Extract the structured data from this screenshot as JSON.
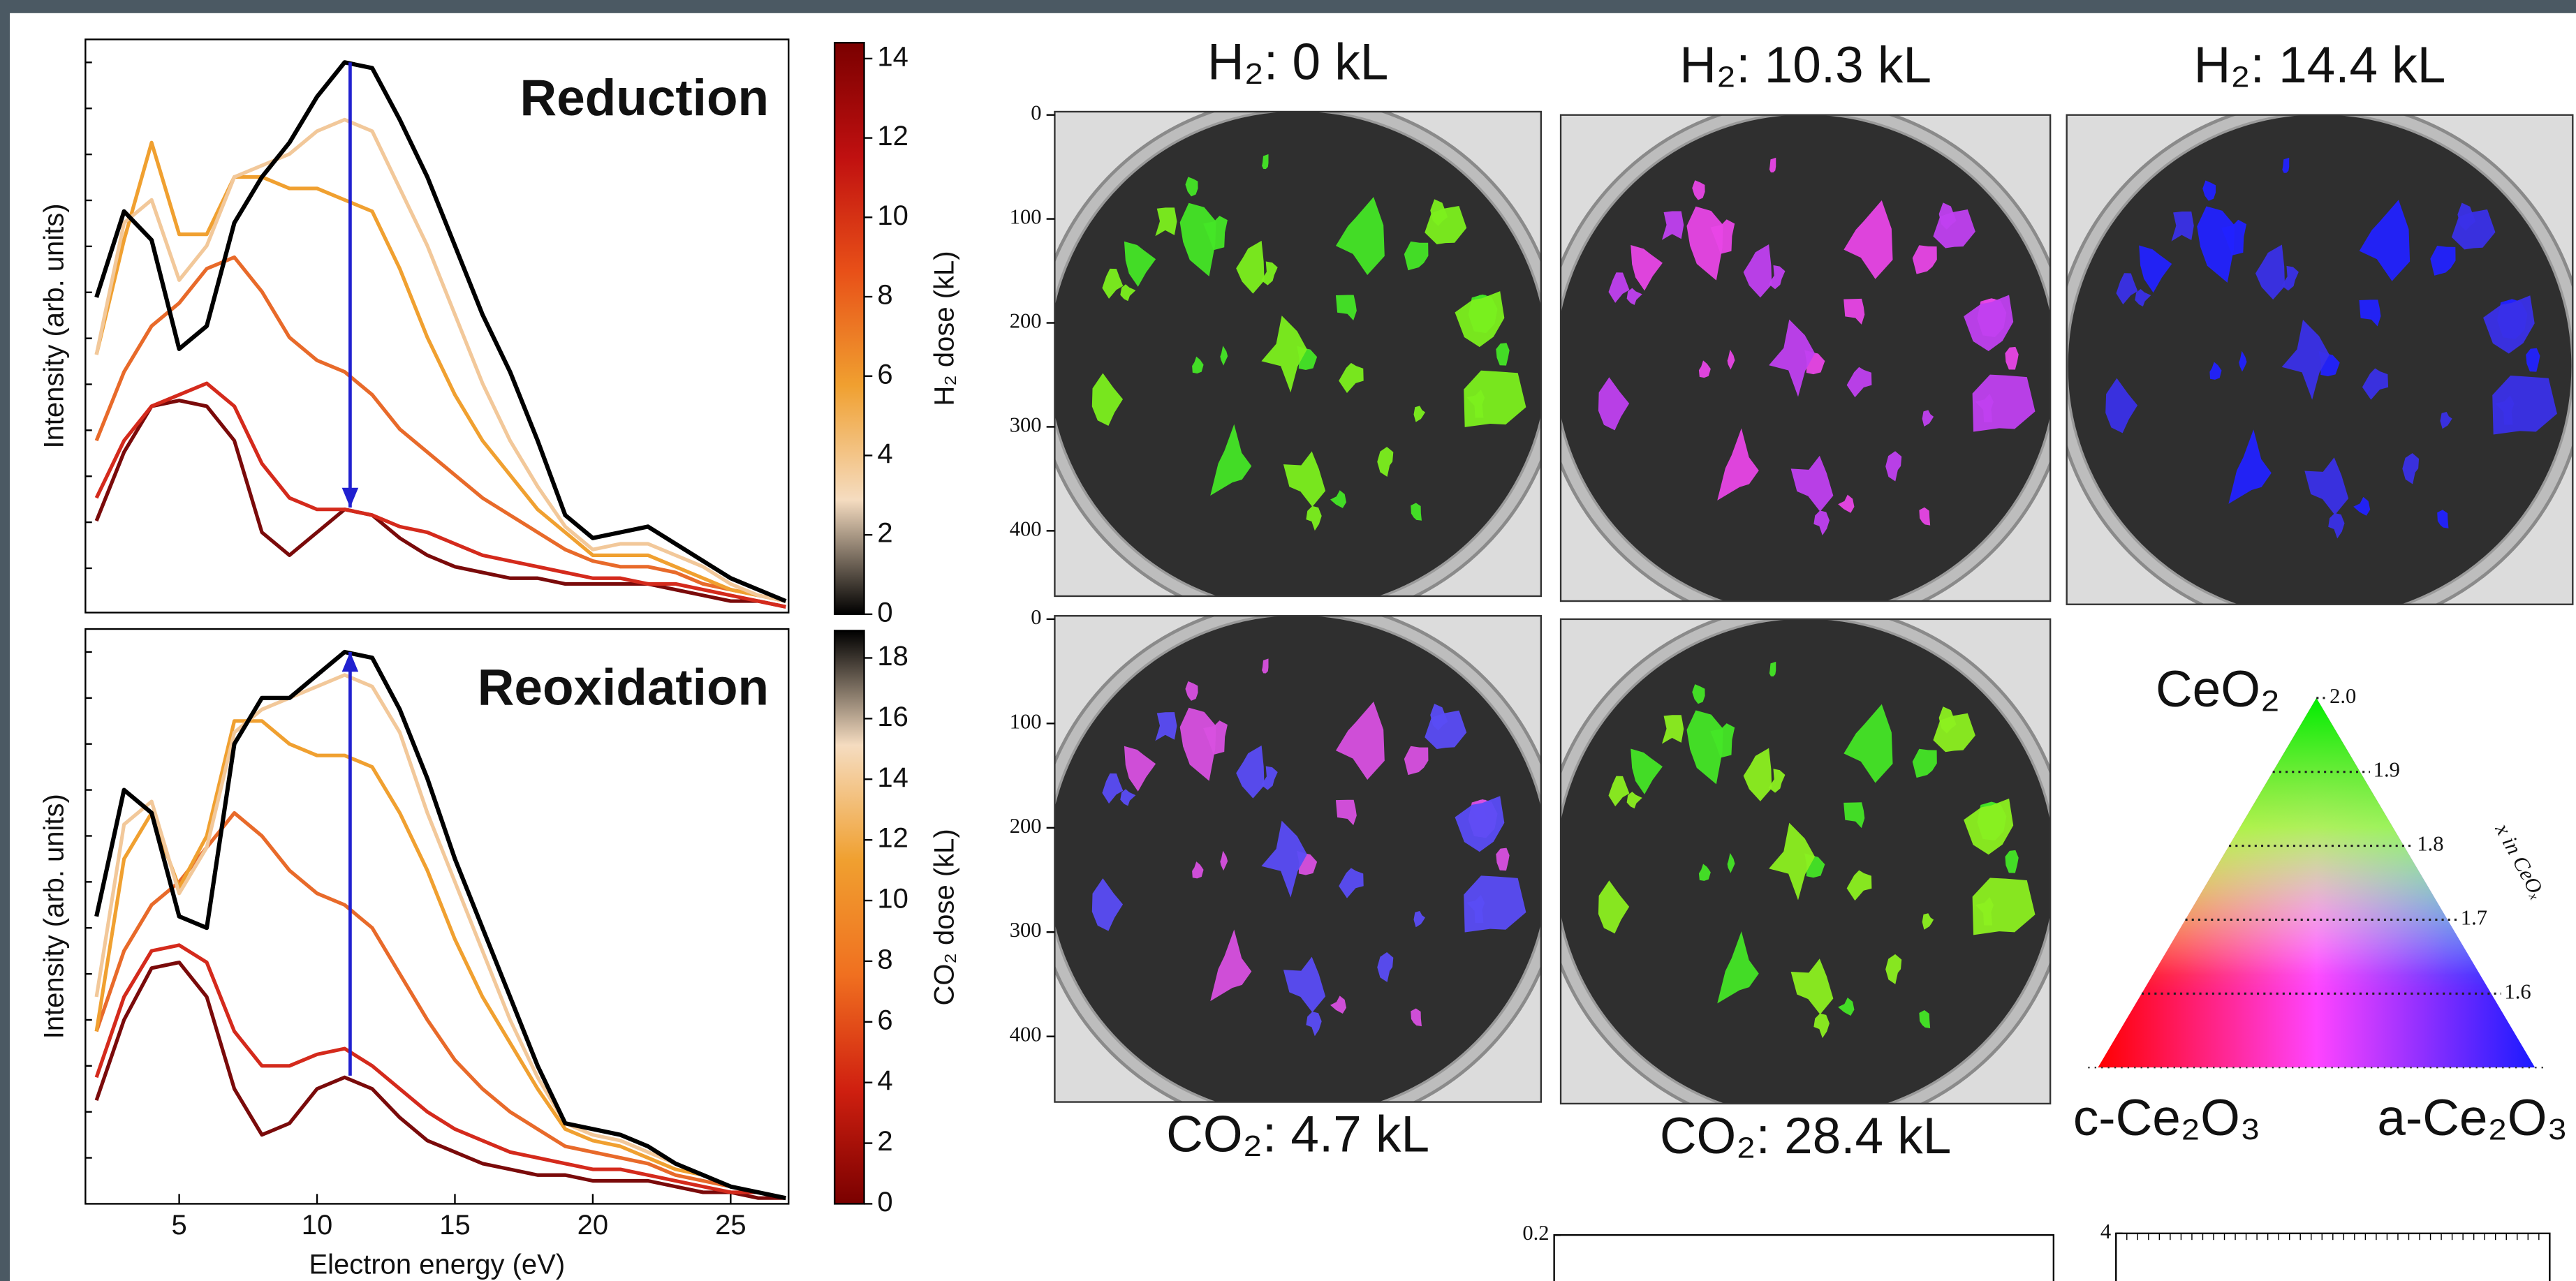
{
  "chart_data": [
    {
      "type": "line",
      "annotation": "Reduction",
      "ylabel": "Intensity (arb. units)",
      "x": [
        2,
        3,
        4,
        5,
        6,
        7,
        8,
        9,
        10,
        11,
        12,
        13,
        14,
        15,
        16,
        17,
        18,
        19,
        20,
        21,
        22,
        23,
        24,
        25,
        26,
        27
      ],
      "xlim": [
        1.6,
        27.1
      ],
      "ylim": [
        0,
        1
      ],
      "series": [
        {
          "color": "#7a0a0a",
          "values": [
            0.16,
            0.28,
            0.36,
            0.37,
            0.36,
            0.3,
            0.14,
            0.1,
            0.14,
            0.18,
            0.17,
            0.13,
            0.1,
            0.08,
            0.07,
            0.06,
            0.06,
            0.05,
            0.05,
            0.05,
            0.05,
            0.04,
            0.03,
            0.02,
            0.02,
            0.01
          ]
        },
        {
          "color": "#d42a1c",
          "values": [
            0.2,
            0.3,
            0.36,
            0.38,
            0.4,
            0.36,
            0.26,
            0.2,
            0.18,
            0.18,
            0.17,
            0.15,
            0.14,
            0.12,
            0.1,
            0.09,
            0.08,
            0.07,
            0.06,
            0.06,
            0.05,
            0.05,
            0.04,
            0.03,
            0.02,
            0.01
          ]
        },
        {
          "color": "#e86a2a",
          "values": [
            0.3,
            0.42,
            0.5,
            0.54,
            0.6,
            0.62,
            0.56,
            0.48,
            0.44,
            0.42,
            0.38,
            0.32,
            0.28,
            0.24,
            0.2,
            0.17,
            0.14,
            0.11,
            0.09,
            0.08,
            0.08,
            0.07,
            0.05,
            0.04,
            0.03,
            0.02
          ]
        },
        {
          "color": "#f0a030",
          "values": [
            0.45,
            0.65,
            0.82,
            0.66,
            0.66,
            0.76,
            0.76,
            0.74,
            0.74,
            0.72,
            0.7,
            0.6,
            0.48,
            0.38,
            0.3,
            0.24,
            0.18,
            0.14,
            0.1,
            0.1,
            0.1,
            0.08,
            0.06,
            0.04,
            0.03,
            0.02
          ]
        },
        {
          "color": "#f2c89a",
          "values": [
            0.45,
            0.68,
            0.72,
            0.58,
            0.64,
            0.76,
            0.78,
            0.8,
            0.84,
            0.86,
            0.84,
            0.74,
            0.64,
            0.52,
            0.4,
            0.3,
            0.22,
            0.15,
            0.11,
            0.12,
            0.12,
            0.1,
            0.08,
            0.05,
            0.03,
            0.02
          ]
        },
        {
          "color": "#000000",
          "values": [
            0.55,
            0.7,
            0.65,
            0.46,
            0.5,
            0.68,
            0.76,
            0.82,
            0.9,
            0.96,
            0.95,
            0.86,
            0.76,
            0.64,
            0.52,
            0.42,
            0.3,
            0.17,
            0.13,
            0.14,
            0.15,
            0.12,
            0.09,
            0.06,
            0.04,
            0.02
          ]
        }
      ]
    },
    {
      "type": "line",
      "annotation": "Reoxidation",
      "ylabel": "Intensity (arb. units)",
      "xlabel": "Electron energy (eV)",
      "x": [
        2,
        3,
        4,
        5,
        6,
        7,
        8,
        9,
        10,
        11,
        12,
        13,
        14,
        15,
        16,
        17,
        18,
        19,
        20,
        21,
        22,
        23,
        24,
        25,
        26,
        27
      ],
      "xlim": [
        1.6,
        27.1
      ],
      "ylim": [
        0,
        1
      ],
      "xticks": [
        5,
        10,
        15,
        20,
        25
      ],
      "series": [
        {
          "color": "#7a0a0a",
          "values": [
            0.18,
            0.32,
            0.41,
            0.42,
            0.36,
            0.2,
            0.12,
            0.14,
            0.2,
            0.22,
            0.2,
            0.15,
            0.11,
            0.09,
            0.07,
            0.06,
            0.05,
            0.05,
            0.04,
            0.04,
            0.04,
            0.03,
            0.02,
            0.02,
            0.01,
            0.01
          ]
        },
        {
          "color": "#d42a1c",
          "values": [
            0.22,
            0.36,
            0.44,
            0.45,
            0.42,
            0.3,
            0.24,
            0.24,
            0.26,
            0.27,
            0.24,
            0.2,
            0.16,
            0.13,
            0.11,
            0.09,
            0.08,
            0.07,
            0.06,
            0.06,
            0.05,
            0.04,
            0.03,
            0.02,
            0.02,
            0.01
          ]
        },
        {
          "color": "#e86a2a",
          "values": [
            0.3,
            0.44,
            0.52,
            0.56,
            0.62,
            0.68,
            0.64,
            0.58,
            0.54,
            0.52,
            0.48,
            0.4,
            0.32,
            0.25,
            0.2,
            0.16,
            0.13,
            0.1,
            0.09,
            0.08,
            0.07,
            0.05,
            0.04,
            0.03,
            0.02,
            0.01
          ]
        },
        {
          "color": "#f0a030",
          "values": [
            0.3,
            0.6,
            0.68,
            0.55,
            0.64,
            0.84,
            0.84,
            0.8,
            0.78,
            0.78,
            0.76,
            0.68,
            0.58,
            0.46,
            0.36,
            0.28,
            0.2,
            0.13,
            0.11,
            0.1,
            0.08,
            0.06,
            0.05,
            0.03,
            0.02,
            0.01
          ]
        },
        {
          "color": "#f2c89a",
          "values": [
            0.36,
            0.66,
            0.7,
            0.54,
            0.62,
            0.82,
            0.86,
            0.88,
            0.9,
            0.92,
            0.9,
            0.82,
            0.68,
            0.56,
            0.44,
            0.32,
            0.22,
            0.14,
            0.12,
            0.11,
            0.09,
            0.07,
            0.05,
            0.03,
            0.02,
            0.01
          ]
        },
        {
          "color": "#000000",
          "values": [
            0.5,
            0.72,
            0.68,
            0.5,
            0.48,
            0.8,
            0.88,
            0.88,
            0.92,
            0.96,
            0.95,
            0.86,
            0.74,
            0.6,
            0.48,
            0.36,
            0.24,
            0.14,
            0.13,
            0.12,
            0.1,
            0.07,
            0.05,
            0.03,
            0.02,
            0.01
          ]
        }
      ]
    },
    {
      "type": "colorbar",
      "ylabel": "H₂ dose (kL)",
      "ylim": [
        0,
        14.4
      ],
      "yticks": [
        0,
        2,
        4,
        6,
        8,
        10,
        12,
        14
      ],
      "colormap": [
        "#000000",
        "#f5dcc0",
        "#f0a030",
        "#e85018",
        "#c01010",
        "#7a0000"
      ]
    },
    {
      "type": "colorbar",
      "ylabel": "CO₂ dose (kL)",
      "ylim": [
        0,
        18.9
      ],
      "yticks": [
        0,
        2,
        4,
        6,
        8,
        10,
        12,
        14,
        16,
        18
      ],
      "colormap": [
        "#7a0000",
        "#d02010",
        "#f07020",
        "#f0a030",
        "#f5dcc0",
        "#000000"
      ]
    },
    {
      "type": "triangle",
      "vertex_labels": [
        "CeO₂",
        "c-Ce₂O₃",
        "a-Ce₂O₃"
      ],
      "ylabel": "x in CeOₓ",
      "ylim": [
        1.5,
        2.0
      ],
      "yticks": [
        {
          "value": 2.0,
          "label": "2.0"
        },
        1.9,
        1.8,
        1.7,
        1.6
      ]
    },
    {
      "type": "line",
      "yticks": [
        0.2
      ]
    },
    {
      "type": "line",
      "yticks": [
        4
      ]
    }
  ],
  "images": [
    {
      "title": "H₂: 0 kL",
      "ylim": [
        0,
        466
      ],
      "yticks": [
        0,
        100,
        200,
        300,
        400
      ],
      "colors": [
        "#44e626",
        "#7cf01e"
      ]
    },
    {
      "title": "H₂: 10.3 kL",
      "colors": [
        "#e846e6",
        "#c040f0"
      ]
    },
    {
      "title": "H₂: 14.4 kL",
      "colors": [
        "#2222ff",
        "#3a30e8"
      ]
    },
    {
      "title": "CO₂: 4.7 kL",
      "ylim": [
        0,
        466
      ],
      "yticks": [
        0,
        100,
        200,
        300,
        400
      ],
      "colors": [
        "#d850e0",
        "#5a4cf6"
      ]
    },
    {
      "title": "CO₂: 28.4 kL",
      "colors": [
        "#44e626",
        "#8cf020"
      ]
    }
  ]
}
